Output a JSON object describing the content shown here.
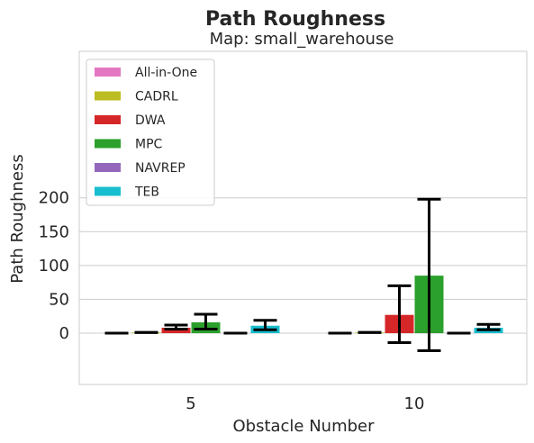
{
  "chart_data": {
    "type": "bar",
    "title": "Path Roughness",
    "subtitle": "Map: small_warehouse",
    "xlabel": "Obstacle Number",
    "ylabel": "Path Roughness",
    "categories": [
      "5",
      "10"
    ],
    "ylim": [
      -38,
      210
    ],
    "yticks": [
      0,
      50,
      100,
      150,
      200
    ],
    "grid": true,
    "legend_position": "top-left",
    "series": [
      {
        "name": "All-in-One",
        "color": "#e377c2",
        "values": [
          0,
          0
        ],
        "err_low": [
          0,
          0
        ],
        "err_high": [
          0,
          0
        ]
      },
      {
        "name": "CADRL",
        "color": "#bcbd22",
        "values": [
          1,
          1
        ],
        "err_low": [
          1,
          1
        ],
        "err_high": [
          1,
          1
        ]
      },
      {
        "name": "DWA",
        "color": "#d62728",
        "values": [
          8,
          27
        ],
        "err_low": [
          6,
          -14
        ],
        "err_high": [
          12,
          70
        ]
      },
      {
        "name": "MPC",
        "color": "#2ca02c",
        "values": [
          16,
          85
        ],
        "err_low": [
          6,
          -26
        ],
        "err_high": [
          28,
          198
        ]
      },
      {
        "name": "NAVREP",
        "color": "#9467bd",
        "values": [
          0,
          0
        ],
        "err_low": [
          0,
          0
        ],
        "err_high": [
          0,
          0
        ]
      },
      {
        "name": "TEB",
        "color": "#17becf",
        "values": [
          11,
          8
        ],
        "err_low": [
          5,
          5
        ],
        "err_high": [
          19,
          13
        ]
      }
    ]
  }
}
